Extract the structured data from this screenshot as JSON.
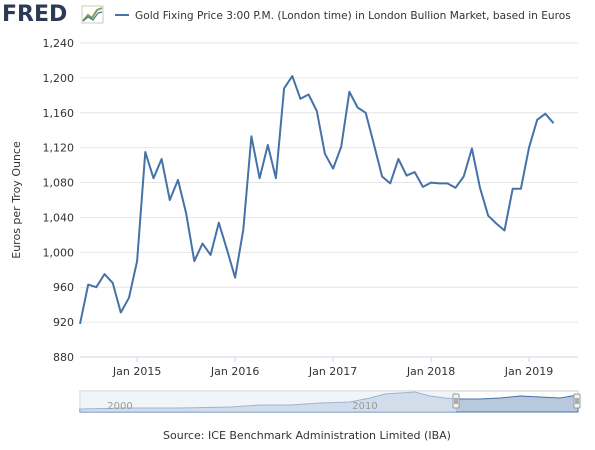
{
  "header": {
    "logo_text": "FRED",
    "legend_label": "Gold Fixing Price 3:00 P.M. (London time) in London Bullion Market, based in Euros"
  },
  "colors": {
    "series": "#4572a7",
    "grid": "#e6e6e6",
    "axis_text": "#333333",
    "navigator_fill": "#b8c9de",
    "navigator_mask": "#e6ecf4",
    "background": "#ffffff"
  },
  "chart_data": {
    "type": "line",
    "ylabel": "Euros per Troy Ounce",
    "xlabel": "",
    "ylim": [
      880,
      1240
    ],
    "yticks": [
      880,
      920,
      960,
      1000,
      1040,
      1080,
      1120,
      1160,
      1200,
      1240
    ],
    "xlim": [
      "2014-06",
      "2019-07"
    ],
    "xticks": [
      {
        "x": "2015-01",
        "label": "Jan 2015"
      },
      {
        "x": "2016-01",
        "label": "Jan 2016"
      },
      {
        "x": "2017-01",
        "label": "Jan 2017"
      },
      {
        "x": "2018-01",
        "label": "Jan 2018"
      },
      {
        "x": "2019-01",
        "label": "Jan 2019"
      }
    ],
    "grid": true,
    "series": [
      {
        "name": "Gold Fixing Price 3:00 P.M. (London time) in London Bullion Market, based in Euros",
        "x": [
          "2014-06",
          "2014-07",
          "2014-08",
          "2014-09",
          "2014-10",
          "2014-11",
          "2014-12",
          "2015-01",
          "2015-02",
          "2015-03",
          "2015-04",
          "2015-05",
          "2015-06",
          "2015-07",
          "2015-08",
          "2015-09",
          "2015-10",
          "2015-11",
          "2015-12",
          "2016-01",
          "2016-02",
          "2016-03",
          "2016-04",
          "2016-05",
          "2016-06",
          "2016-07",
          "2016-08",
          "2016-09",
          "2016-10",
          "2016-11",
          "2016-12",
          "2017-01",
          "2017-02",
          "2017-03",
          "2017-04",
          "2017-05",
          "2017-06",
          "2017-07",
          "2017-08",
          "2017-09",
          "2017-10",
          "2017-11",
          "2017-12",
          "2018-01",
          "2018-02",
          "2018-03",
          "2018-04",
          "2018-05",
          "2018-06",
          "2018-07",
          "2018-08",
          "2018-09",
          "2018-10",
          "2018-11",
          "2018-12",
          "2019-01",
          "2019-02",
          "2019-03",
          "2019-04"
        ],
        "values": [
          918,
          963,
          960,
          975,
          965,
          931,
          948,
          990,
          1115,
          1085,
          1107,
          1060,
          1083,
          1045,
          990,
          1010,
          997,
          1034,
          1003,
          971,
          1026,
          1133,
          1085,
          1123,
          1085,
          1188,
          1202,
          1176,
          1181,
          1162,
          1113,
          1096,
          1121,
          1184,
          1166,
          1160,
          1124,
          1087,
          1079,
          1107,
          1088,
          1092,
          1075,
          1080,
          1079,
          1079,
          1074,
          1087,
          1119,
          1074,
          1042,
          1033,
          1025,
          1073,
          1073,
          1120,
          1152,
          1159,
          1148
        ]
      }
    ]
  },
  "navigator": {
    "tick_labels": [
      "2000",
      "2010"
    ]
  },
  "footer": {
    "source": "Source: ICE Benchmark Administration Limited (IBA)"
  }
}
